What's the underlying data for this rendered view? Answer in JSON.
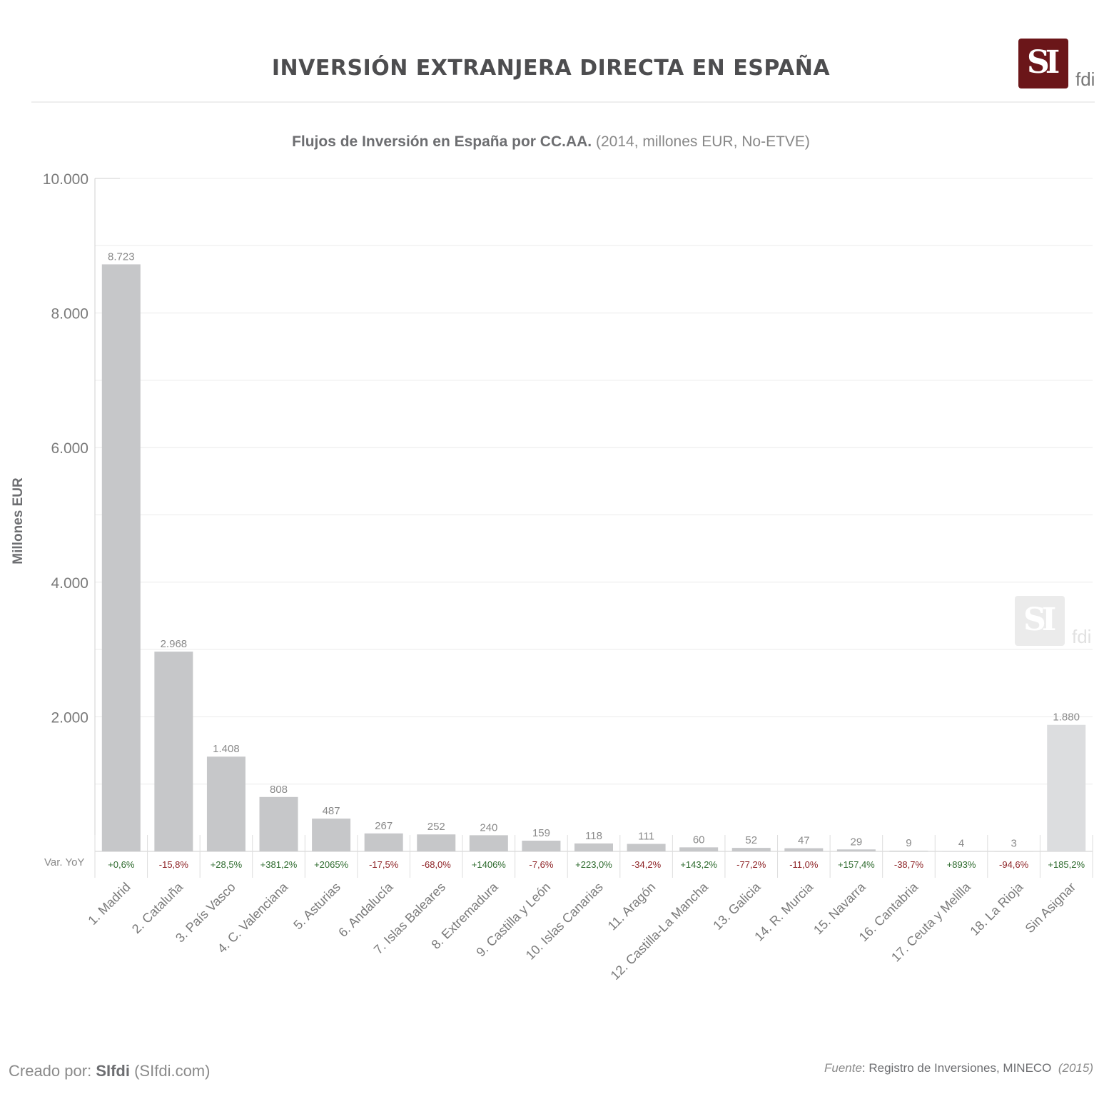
{
  "header": {
    "title": "INVERSIÓN EXTRANJERA DIRECTA EN ESPAÑA",
    "logo_mark": "SI",
    "logo_suffix": "fdi"
  },
  "subtitle": {
    "bold": "Flujos de Inversión en España por CC.AA.",
    "light": "(2014, millones EUR, No-ETVE)"
  },
  "footer": {
    "created_prefix": "Creado por:",
    "created_brand": "SIfdi",
    "created_site": "(SIfdi.com)",
    "source_label": "Fuente",
    "source_text": ": Registro de Inversiones, MINECO",
    "source_year": "(2015)"
  },
  "colors": {
    "bar": "#c6c7c9",
    "bar_unassigned": "#dcdddf",
    "positive": "#2e6b2e",
    "negative": "#8e2326",
    "brand": "#6b1619"
  },
  "chart_data": {
    "type": "bar",
    "title": "Flujos de Inversión en España por CC.AA.",
    "ylabel": "Millones EUR",
    "ylim": [
      0,
      10000
    ],
    "yticks": [
      "2.000",
      "4.000",
      "6.000",
      "8.000",
      "10.000"
    ],
    "ytick_values": [
      2000,
      4000,
      6000,
      8000,
      10000
    ],
    "grid": true,
    "categories": [
      "1. Madrid",
      "2. Cataluña",
      "3. País Vasco",
      "4. C. Valenciana",
      "5. Asturias",
      "6. Andalucía",
      "7. Islas Baleares",
      "8. Extremadura",
      "9. Castilla y León",
      "10. Islas Canarias",
      "11. Aragón",
      "12. Castilla-La Mancha",
      "13. Galicia",
      "14. R. Murcia",
      "15. Navarra",
      "16. Cantabria",
      "17. Ceuta y Melilla",
      "18. La Rioja",
      "Sin Asignar"
    ],
    "values": [
      8723,
      2968,
      1408,
      808,
      487,
      267,
      252,
      240,
      159,
      118,
      111,
      60,
      52,
      47,
      29,
      9,
      4,
      3,
      1880
    ],
    "value_labels": [
      "8.723",
      "2.968",
      "1.408",
      "808",
      "487",
      "267",
      "252",
      "240",
      "159",
      "118",
      "111",
      "60",
      "52",
      "47",
      "29",
      "9",
      "4",
      "3",
      "1.880"
    ],
    "yoy_label": "Var. YoY",
    "yoy": [
      "+0,6%",
      "-15,8%",
      "+28,5%",
      "+381,2%",
      "+2065%",
      "-17,5%",
      "-68,0%",
      "+1406%",
      "-7,6%",
      "+223,0%",
      "-34,2%",
      "+143,2%",
      "-77,2%",
      "-11,0%",
      "+157,4%",
      "-38,7%",
      "+893%",
      "-94,6%",
      "+185,2%"
    ]
  }
}
